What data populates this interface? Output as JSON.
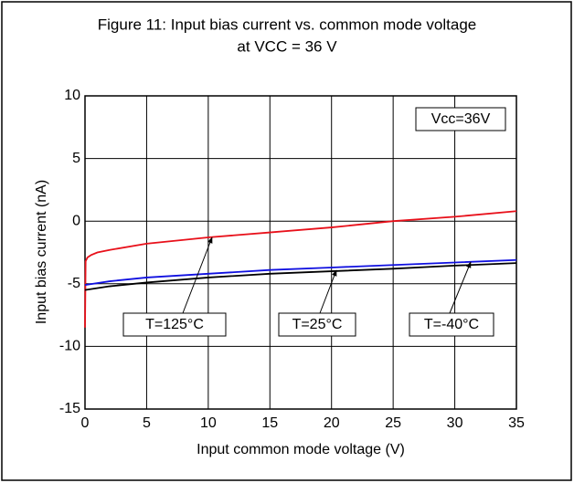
{
  "chart_data": {
    "type": "line",
    "title": "Figure 11: Input bias current vs. common mode voltage",
    "subtitle": "at VCC = 36 V",
    "x_label": "Input common mode voltage (V)",
    "y_label": "Input bias current   (nA)",
    "annotations": [
      "Vcc=36V"
    ],
    "series": [
      {
        "name": "T=125°C",
        "color": "#e8101a",
        "x": [
          0,
          0.05,
          0.2,
          0.5,
          1,
          2,
          5,
          10,
          15,
          20,
          25,
          30,
          35
        ],
        "values": [
          -8.5,
          -3.2,
          -2.9,
          -2.7,
          -2.5,
          -2.3,
          -1.8,
          -1.3,
          -0.9,
          -0.5,
          0,
          0.35,
          0.8
        ]
      },
      {
        "name": "T=25°C",
        "color": "#1010e0",
        "x": [
          0,
          2,
          5,
          10,
          15,
          20,
          25,
          30,
          35
        ],
        "values": [
          -5.1,
          -4.8,
          -4.5,
          -4.2,
          -3.9,
          -3.7,
          -3.5,
          -3.3,
          -3.1
        ]
      },
      {
        "name": "T=-40°C",
        "color": "#000000",
        "x": [
          0,
          2,
          5,
          10,
          15,
          20,
          25,
          30,
          35
        ],
        "values": [
          -5.5,
          -5.2,
          -4.9,
          -4.5,
          -4.2,
          -4.0,
          -3.8,
          -3.55,
          -3.35
        ]
      }
    ],
    "xlim": [
      0,
      35
    ],
    "xticks": [
      0,
      5,
      10,
      15,
      20,
      25,
      30,
      35
    ],
    "ylim": [
      -15,
      10
    ],
    "yticks": [
      -15,
      -10,
      -5,
      0,
      5,
      10
    ],
    "grid": true
  }
}
